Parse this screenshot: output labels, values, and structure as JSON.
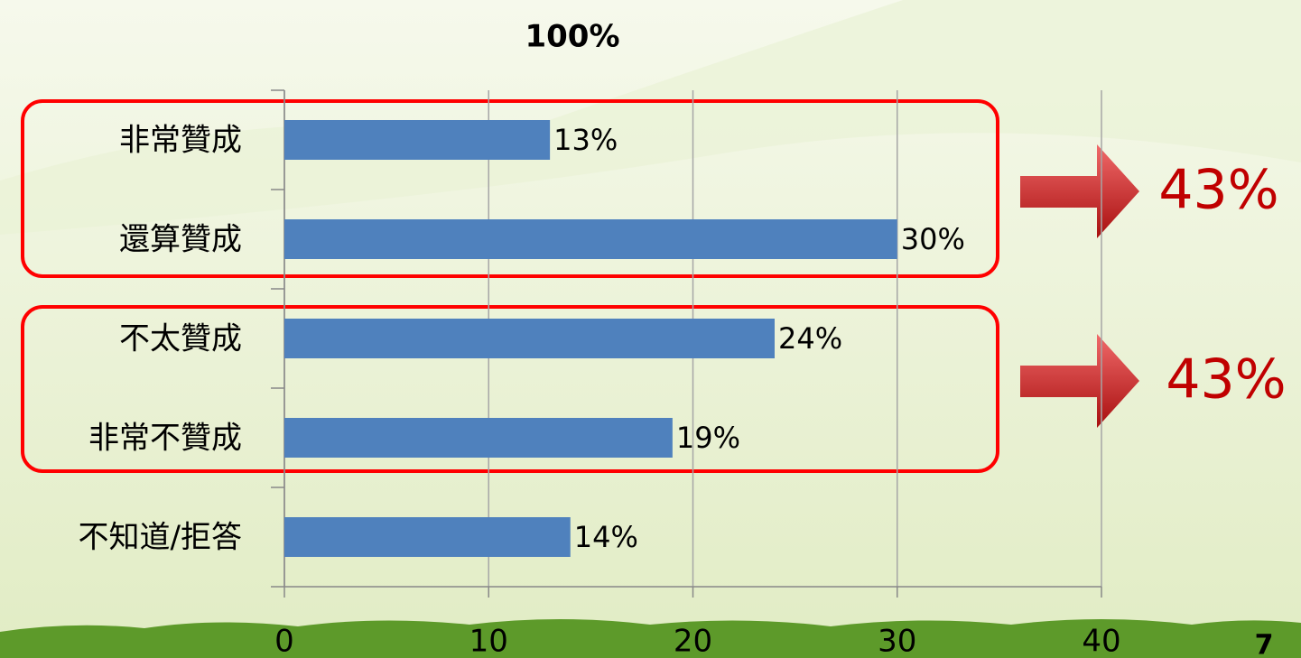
{
  "chart_data": {
    "type": "bar",
    "orientation": "horizontal",
    "title": "100%",
    "categories": [
      "非常贊成",
      "還算贊成",
      "不太贊成",
      "非常不贊成",
      "不知道/拒答"
    ],
    "values": [
      13,
      30,
      24,
      19,
      14
    ],
    "value_labels": [
      "13%",
      "30%",
      "24%",
      "19%",
      "14%"
    ],
    "color": "#4f81bd",
    "xlim": [
      0,
      40
    ],
    "xticks": [
      0,
      10,
      20,
      30,
      40
    ],
    "grid": true,
    "annotations": [
      "43%",
      "43%"
    ],
    "page_number": "7"
  }
}
